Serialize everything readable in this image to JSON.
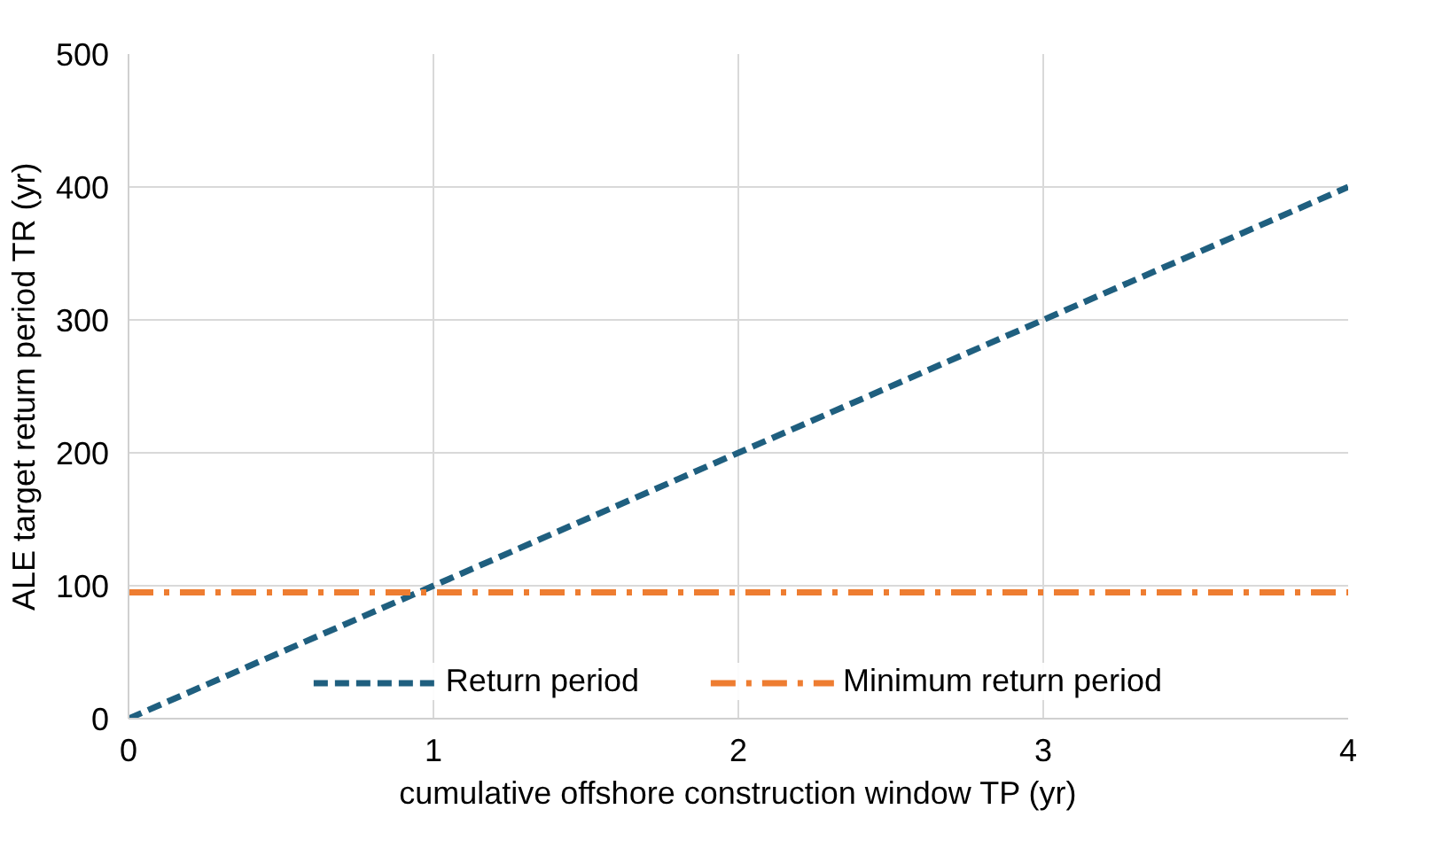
{
  "chart_data": {
    "type": "line",
    "xlabel": "cumulative offshore construction window TP (yr)",
    "ylabel": "ALE target return period TR (yr)",
    "x": [
      0,
      4
    ],
    "series": [
      {
        "name": "Return period",
        "color": "#1f5f7f",
        "values": [
          0,
          400
        ],
        "line_style": "dashed"
      },
      {
        "name": "Minimum return period",
        "color": "#ee7d31",
        "values": [
          95,
          95
        ],
        "line_style": "dashdot"
      }
    ],
    "xlim": [
      0,
      4
    ],
    "ylim": [
      0,
      500
    ],
    "xticks": [
      0,
      1,
      2,
      3,
      4
    ],
    "yticks": [
      0,
      100,
      200,
      300,
      400,
      500
    ],
    "grid": true,
    "legend": "bottom",
    "marker": "none"
  }
}
